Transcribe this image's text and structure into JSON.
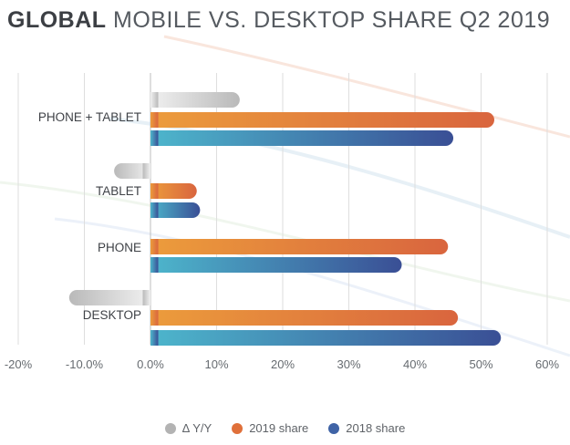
{
  "title": {
    "bold": "GLOBAL",
    "rest": "MOBILE VS. DESKTOP SHARE Q2 2019"
  },
  "legend": [
    {
      "label": "Δ Y/Y",
      "color": "#b3b3b3"
    },
    {
      "label": "2019 share",
      "color": "#e0703a"
    },
    {
      "label": "2018 share",
      "color": "#3f63a6"
    }
  ],
  "chart_data": {
    "type": "bar",
    "orientation": "horizontal",
    "categories": [
      "PHONE + TABLET",
      "TABLET",
      "PHONE",
      "DESKTOP"
    ],
    "series": [
      {
        "name": "Δ Y/Y",
        "values": [
          13.5,
          -5.5,
          0,
          -12.3
        ],
        "color": "#b3b3b3"
      },
      {
        "name": "2019 share",
        "values": [
          52,
          7,
          45,
          46.5
        ],
        "color": "#e0703a"
      },
      {
        "name": "2018 share",
        "values": [
          45.8,
          7.5,
          38,
          53
        ],
        "color": "#3f63a6"
      }
    ],
    "xlim": [
      -20,
      60
    ],
    "xticks": [
      -20,
      -10,
      0,
      10,
      20,
      30,
      40,
      50,
      60
    ],
    "xtick_labels": [
      "-20%",
      "-10.0%",
      "0.0%",
      "10%",
      "20%",
      "30%",
      "40%",
      "50%",
      "60%"
    ],
    "grid": true,
    "legend_position": "bottom"
  }
}
